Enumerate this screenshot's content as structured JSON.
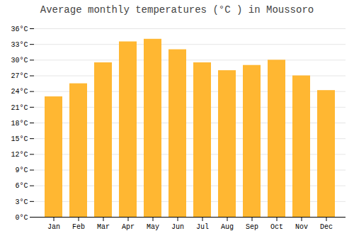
{
  "chart_data": {
    "type": "bar",
    "title": "Average monthly temperatures (°C ) in Moussoro",
    "categories": [
      "Jan",
      "Feb",
      "Mar",
      "Apr",
      "May",
      "Jun",
      "Jul",
      "Aug",
      "Sep",
      "Oct",
      "Nov",
      "Dec"
    ],
    "values": [
      23.0,
      25.5,
      29.5,
      33.5,
      34.0,
      32.0,
      29.5,
      28.0,
      29.0,
      30.0,
      27.0,
      24.2
    ],
    "color": "#FFB732",
    "ylim": [
      0,
      36
    ],
    "yticks": [
      {
        "value": 0,
        "label": "0°C"
      },
      {
        "value": 3,
        "label": "3°C"
      },
      {
        "value": 6,
        "label": "6°C"
      },
      {
        "value": 9,
        "label": "9°C"
      },
      {
        "value": 12,
        "label": "12°C"
      },
      {
        "value": 15,
        "label": "15°C"
      },
      {
        "value": 18,
        "label": "18°C"
      },
      {
        "value": 21,
        "label": "21°C"
      },
      {
        "value": 24,
        "label": "24°C"
      },
      {
        "value": 27,
        "label": "27°C"
      },
      {
        "value": 30,
        "label": "30°C"
      },
      {
        "value": 33,
        "label": "33°C"
      },
      {
        "value": 36,
        "label": "36°C"
      }
    ],
    "grid": true
  }
}
